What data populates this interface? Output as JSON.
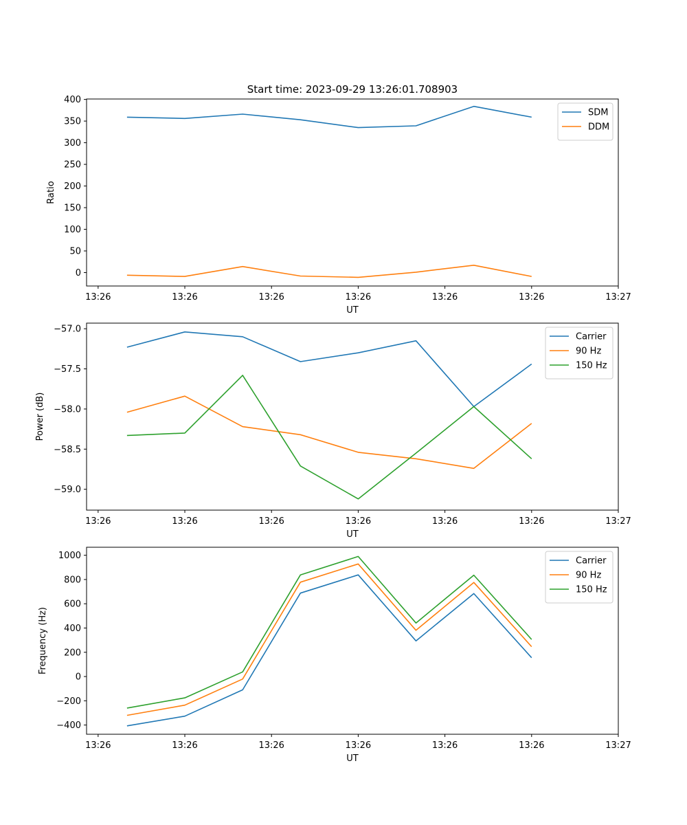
{
  "figure": {
    "title": "Start time: 2023-09-29 13:26:01.708903"
  },
  "chart_data": [
    {
      "type": "line",
      "xlabel": "UT",
      "ylabel": "Ratio",
      "x_index": [
        0,
        1,
        2,
        3,
        4,
        5,
        6,
        7
      ],
      "x_ticks": [
        {
          "pos": -0.5,
          "label": "13:26"
        },
        {
          "pos": 1.0,
          "label": "13:26"
        },
        {
          "pos": 2.5,
          "label": "13:26"
        },
        {
          "pos": 4.0,
          "label": "13:26"
        },
        {
          "pos": 5.5,
          "label": "13:26"
        },
        {
          "pos": 7.0,
          "label": "13:26"
        },
        {
          "pos": 8.5,
          "label": "13:27"
        }
      ],
      "xlim": [
        -0.7,
        8.5
      ],
      "ylim": [
        -31,
        401
      ],
      "y_ticks": [
        0,
        50,
        100,
        150,
        200,
        250,
        300,
        350,
        400
      ],
      "y_tick_labels": [
        "0",
        "50",
        "100",
        "150",
        "200",
        "250",
        "300",
        "350",
        "400"
      ],
      "legend_position": "upper-right",
      "series": [
        {
          "name": "SDM",
          "color": "#1f77b4",
          "values": [
            359,
            356,
            366,
            353,
            335,
            339,
            384,
            359
          ]
        },
        {
          "name": "DDM",
          "color": "#ff7f0e",
          "values": [
            -6,
            -9,
            14,
            -8,
            -11,
            1,
            17,
            -9
          ]
        }
      ]
    },
    {
      "type": "line",
      "xlabel": "UT",
      "ylabel": "Power (dB)",
      "x_index": [
        0,
        1,
        2,
        3,
        4,
        5,
        6,
        7
      ],
      "x_ticks": [
        {
          "pos": -0.5,
          "label": "13:26"
        },
        {
          "pos": 1.0,
          "label": "13:26"
        },
        {
          "pos": 2.5,
          "label": "13:26"
        },
        {
          "pos": 4.0,
          "label": "13:26"
        },
        {
          "pos": 5.5,
          "label": "13:26"
        },
        {
          "pos": 7.0,
          "label": "13:26"
        },
        {
          "pos": 8.5,
          "label": "13:27"
        }
      ],
      "xlim": [
        -0.7,
        8.5
      ],
      "ylim": [
        -59.26,
        -56.93
      ],
      "y_ticks": [
        -59.0,
        -58.5,
        -58.0,
        -57.5,
        -57.0
      ],
      "y_tick_labels": [
        "−59.0",
        "−58.5",
        "−58.0",
        "−57.5",
        "−57.0"
      ],
      "legend_position": "upper-right",
      "series": [
        {
          "name": "Carrier",
          "color": "#1f77b4",
          "values": [
            -57.23,
            -57.04,
            -57.1,
            -57.41,
            -57.3,
            -57.15,
            -57.97,
            -57.44
          ]
        },
        {
          "name": "90 Hz",
          "color": "#ff7f0e",
          "values": [
            -58.04,
            -57.84,
            -58.22,
            -58.32,
            -58.54,
            -58.62,
            -58.74,
            -58.18
          ]
        },
        {
          "name": "150 Hz",
          "color": "#2ca02c",
          "values": [
            -58.33,
            -58.3,
            -57.58,
            -58.71,
            -59.12,
            -58.55,
            -57.97,
            -58.62
          ]
        }
      ]
    },
    {
      "type": "line",
      "xlabel": "UT",
      "ylabel": "Frequency (Hz)",
      "x_index": [
        0,
        1,
        2,
        3,
        4,
        5,
        6,
        7
      ],
      "x_ticks": [
        {
          "pos": -0.5,
          "label": "13:26"
        },
        {
          "pos": 1.0,
          "label": "13:26"
        },
        {
          "pos": 2.5,
          "label": "13:26"
        },
        {
          "pos": 4.0,
          "label": "13:26"
        },
        {
          "pos": 5.5,
          "label": "13:26"
        },
        {
          "pos": 7.0,
          "label": "13:26"
        },
        {
          "pos": 8.5,
          "label": "13:27"
        }
      ],
      "xlim": [
        -0.7,
        8.5
      ],
      "ylim": [
        -476,
        1066
      ],
      "y_ticks": [
        -400,
        -200,
        0,
        200,
        400,
        600,
        800,
        1000
      ],
      "y_tick_labels": [
        "−400",
        "−200",
        "0",
        "200",
        "400",
        "600",
        "800",
        "1000"
      ],
      "legend_position": "upper-right",
      "series": [
        {
          "name": "Carrier",
          "color": "#1f77b4",
          "values": [
            -407,
            -327,
            -110,
            688,
            838,
            294,
            684,
            155
          ]
        },
        {
          "name": "90 Hz",
          "color": "#ff7f0e",
          "values": [
            -320,
            -236,
            -21,
            778,
            928,
            381,
            776,
            246
          ]
        },
        {
          "name": "150 Hz",
          "color": "#2ca02c",
          "values": [
            -260,
            -176,
            38,
            838,
            990,
            441,
            836,
            306
          ]
        }
      ]
    }
  ]
}
